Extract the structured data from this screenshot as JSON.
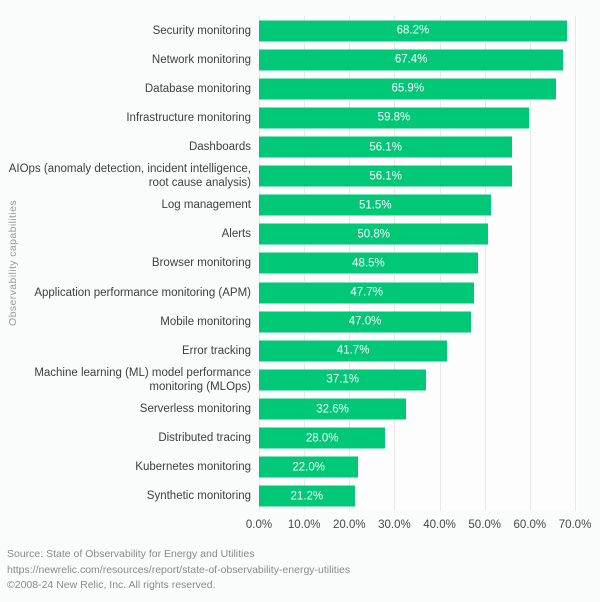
{
  "chart_data": {
    "type": "bar",
    "orientation": "horizontal",
    "title": "",
    "xlabel": "",
    "ylabel": "Observability capabilities",
    "categories": [
      "Security monitoring",
      "Network monitoring",
      "Database monitoring",
      "Infrastructure monitoring",
      "Dashboards",
      "AIOps (anomaly detection, incident intelligence,\nroot cause analysis)",
      "Log management",
      "Alerts",
      "Browser monitoring",
      "Application performance monitoring (APM)",
      "Mobile monitoring",
      "Error tracking",
      "Machine learning (ML) model performance\nmonitoring (MLOps)",
      "Serverless monitoring",
      "Distributed tracing",
      "Kubernetes monitoring",
      "Synthetic monitoring"
    ],
    "values": [
      68.2,
      67.4,
      65.9,
      59.8,
      56.1,
      56.1,
      51.5,
      50.8,
      48.5,
      47.7,
      47.0,
      41.7,
      37.1,
      32.6,
      28.0,
      22.0,
      21.2
    ],
    "x_ticks": [
      "0.0%",
      "10.0%",
      "20.0%",
      "30.0%",
      "40.0%",
      "50.0%",
      "60.0%",
      "70.0%"
    ],
    "xlim": [
      0,
      70
    ],
    "grid": true,
    "legend": "none",
    "bar_color": "#00c877",
    "value_label_color": "#ffffff"
  },
  "footer": {
    "source_line": "Source: State of Observability for Energy and Utilities",
    "url_line": "https://newrelic.com/resources/report/state-of-observability-energy-utilities",
    "copyright_line": "©2008-24 New Relic, Inc. All rights reserved."
  }
}
